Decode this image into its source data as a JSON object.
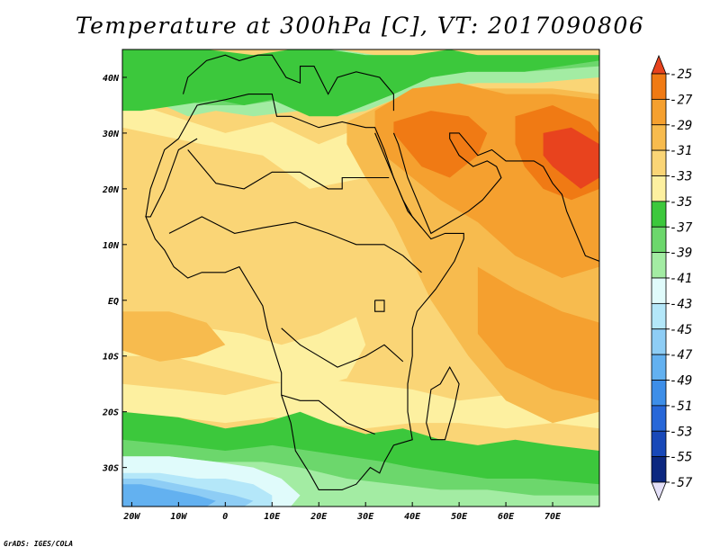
{
  "title": "Temperature at 300hPa [C], VT: 2017090806",
  "credit": "GrADS: IGES/COLA",
  "chart_data": {
    "type": "heatmap",
    "title": "Temperature at 300hPa [C], VT: 2017090806",
    "variable": "Temperature at 300hPa",
    "units": "C",
    "valid_time": "2017090806",
    "xlim": [
      -22,
      80
    ],
    "ylim": [
      -37,
      45
    ],
    "x_ticks": [
      {
        "value": -20,
        "label": "20W"
      },
      {
        "value": -10,
        "label": "10W"
      },
      {
        "value": 0,
        "label": "0"
      },
      {
        "value": 10,
        "label": "10E"
      },
      {
        "value": 20,
        "label": "20E"
      },
      {
        "value": 30,
        "label": "30E"
      },
      {
        "value": 40,
        "label": "40E"
      },
      {
        "value": 50,
        "label": "50E"
      },
      {
        "value": 60,
        "label": "60E"
      },
      {
        "value": 70,
        "label": "70E"
      }
    ],
    "y_ticks": [
      {
        "value": 40,
        "label": "40N"
      },
      {
        "value": 30,
        "label": "30N"
      },
      {
        "value": 20,
        "label": "20N"
      },
      {
        "value": 10,
        "label": "10N"
      },
      {
        "value": 0,
        "label": "EQ"
      },
      {
        "value": -10,
        "label": "10S"
      },
      {
        "value": -20,
        "label": "20S"
      },
      {
        "value": -30,
        "label": "30S"
      }
    ],
    "colorbar": {
      "labels": [
        "-25",
        "-27",
        "-29",
        "-31",
        "-33",
        "-35",
        "-37",
        "-39",
        "-41",
        "-43",
        "-45",
        "-47",
        "-49",
        "-51",
        "-53",
        "-55",
        "-57"
      ],
      "colors": [
        "#e8431e",
        "#f07a14",
        "#f5a02f",
        "#f7bb4e",
        "#fad576",
        "#fdf0a0",
        "#3cc83c",
        "#6cd76c",
        "#a3eca3",
        "#e0fbfb",
        "#b4e7f9",
        "#8ecdf5",
        "#63b1f0",
        "#3d8ee8",
        "#2767d8",
        "#1848b8",
        "#0c2880",
        "#e4e0f8"
      ]
    },
    "regions": [
      {
        "fill": "#fad576",
        "lon": [
          -22,
          80,
          80,
          -22
        ],
        "lat": [
          45,
          45,
          -37,
          -37
        ]
      },
      {
        "fill": "#fdf0a0",
        "lon": [
          -22,
          0,
          10,
          20,
          26,
          32,
          30,
          18,
          8,
          -5,
          -22
        ],
        "lat": [
          36,
          30,
          32,
          28,
          30,
          30,
          22,
          20,
          26,
          28,
          31
        ]
      },
      {
        "fill": "#a3eca3",
        "lon": [
          -22,
          -8,
          0,
          8,
          16,
          24,
          32,
          40,
          52,
          64,
          80,
          80,
          66,
          54,
          44,
          36,
          30,
          24,
          16,
          6,
          -2,
          -8,
          -16,
          -22
        ],
        "lat": [
          45,
          45,
          44,
          44,
          44,
          45,
          44,
          43,
          44,
          42,
          44,
          40,
          39,
          39,
          38,
          36,
          34,
          33,
          34,
          33,
          34,
          33,
          36,
          36
        ]
      },
      {
        "fill": "#6cd76c",
        "lon": [
          -22,
          -8,
          4,
          14,
          22,
          30,
          38,
          48,
          60,
          80,
          80,
          64,
          52,
          42,
          34,
          28,
          20,
          12,
          4,
          -4,
          -10,
          -16,
          -22
        ],
        "lat": [
          45,
          45,
          44,
          44,
          45,
          44,
          44,
          44,
          44,
          44,
          42,
          41,
          41,
          40,
          38,
          35,
          34,
          36,
          35,
          35,
          36,
          35,
          35
        ]
      },
      {
        "fill": "#3cc83c",
        "lon": [
          -22,
          -12,
          -4,
          6,
          14,
          22,
          30,
          40,
          48,
          54,
          62,
          72,
          80,
          80,
          64,
          52,
          44,
          36,
          30,
          24,
          18,
          10,
          4,
          -2,
          -10,
          -18,
          -22
        ],
        "lat": [
          45,
          45,
          45,
          44,
          45,
          45,
          44,
          44,
          45,
          44,
          44,
          44,
          44,
          43,
          41,
          41,
          40,
          37,
          35,
          33,
          33,
          36,
          35,
          36,
          35,
          34,
          34
        ]
      },
      {
        "fill": "#fdf0a0",
        "lon": [
          -22,
          -12,
          -4,
          4,
          12,
          20,
          28,
          30,
          26,
          18,
          8,
          -2,
          -12,
          -22
        ],
        "lat": [
          -5,
          -6,
          -5,
          -6,
          -8,
          -6,
          -3,
          -8,
          -14,
          -16,
          -14,
          -12,
          -10,
          -10
        ]
      },
      {
        "fill": "#fdf0a0",
        "lon": [
          -22,
          -10,
          0,
          10,
          20,
          30,
          40,
          50,
          60,
          70,
          80,
          80,
          70,
          60,
          50,
          40,
          30,
          20,
          10,
          0,
          -10,
          -22
        ],
        "lat": [
          -15,
          -16,
          -17,
          -15,
          -14,
          -15,
          -16,
          -18,
          -17,
          -18,
          -17,
          -23,
          -22,
          -23,
          -22,
          -22,
          -23,
          -22,
          -21,
          -22,
          -21,
          -20
        ]
      },
      {
        "fill": "#3cc83c",
        "lon": [
          -22,
          -10,
          0,
          8,
          16,
          22,
          30,
          38,
          46,
          54,
          62,
          70,
          80,
          80,
          -22
        ],
        "lat": [
          -20,
          -21,
          -23,
          -22,
          -20,
          -22,
          -24,
          -23,
          -25,
          -26,
          -25,
          -26,
          -27,
          -37,
          -37
        ]
      },
      {
        "fill": "#6cd76c",
        "lon": [
          -22,
          -10,
          0,
          10,
          18,
          26,
          34,
          40,
          48,
          56,
          66,
          80,
          80,
          -22
        ],
        "lat": [
          -25,
          -26,
          -27,
          -26,
          -27,
          -28,
          -29,
          -30,
          -31,
          -32,
          -32,
          -33,
          -37,
          -37
        ]
      },
      {
        "fill": "#a3eca3",
        "lon": [
          -22,
          -12,
          -2,
          8,
          16,
          26,
          36,
          46,
          56,
          66,
          80,
          80,
          -22
        ],
        "lat": [
          -28,
          -28,
          -29,
          -29,
          -30,
          -32,
          -33,
          -34,
          -34,
          -35,
          -35,
          -37,
          -37
        ]
      },
      {
        "fill": "#e0fbfb",
        "lon": [
          -22,
          -12,
          -2,
          6,
          12,
          16,
          14,
          6,
          -4,
          -14,
          -22
        ],
        "lat": [
          -28,
          -28,
          -29,
          -30,
          -32,
          -35,
          -37,
          -37,
          -37,
          -37,
          -37
        ]
      },
      {
        "fill": "#b4e7f9",
        "lon": [
          -22,
          -14,
          -6,
          0,
          6,
          10,
          10,
          4,
          -6,
          -16,
          -22
        ],
        "lat": [
          -31,
          -31,
          -32,
          -32,
          -33,
          -35,
          -37,
          -37,
          -37,
          -37,
          -37
        ]
      },
      {
        "fill": "#8ecdf5",
        "lon": [
          -22,
          -16,
          -10,
          -4,
          2,
          6,
          4,
          -4,
          -14,
          -22
        ],
        "lat": [
          -32,
          -32,
          -33,
          -34,
          -35,
          -36,
          -37,
          -37,
          -37,
          -37
        ]
      },
      {
        "fill": "#63b1f0",
        "lon": [
          -22,
          -18,
          -12,
          -6,
          -2,
          -4,
          -12,
          -22
        ],
        "lat": [
          -33,
          -33,
          -34,
          -35,
          -36,
          -37,
          -37,
          -37
        ]
      },
      {
        "fill": "#f7bb4e",
        "lon": [
          26,
          36,
          46,
          58,
          70,
          80,
          80,
          70,
          60,
          52,
          44,
          36,
          30,
          26
        ],
        "lat": [
          32,
          36,
          38,
          38,
          38,
          37,
          -20,
          -22,
          -18,
          -10,
          0,
          14,
          22,
          28
        ]
      },
      {
        "fill": "#f7bb4e",
        "lon": [
          -22,
          -12,
          -4,
          0,
          -6,
          -14,
          -22
        ],
        "lat": [
          -2,
          -2,
          -4,
          -8,
          -10,
          -11,
          -9
        ]
      },
      {
        "fill": "#f5a02f",
        "lon": [
          32,
          40,
          50,
          60,
          70,
          80,
          80,
          72,
          62,
          54,
          46,
          40,
          34,
          32
        ],
        "lat": [
          34,
          38,
          39,
          37,
          37,
          36,
          6,
          4,
          8,
          14,
          18,
          22,
          26,
          30
        ]
      },
      {
        "fill": "#f5a02f",
        "lon": [
          54,
          62,
          72,
          80,
          80,
          70,
          60,
          54
        ],
        "lat": [
          6,
          2,
          -2,
          -4,
          -18,
          -16,
          -12,
          -6
        ]
      },
      {
        "fill": "#f07a14",
        "lon": [
          36,
          44,
          52,
          56,
          54,
          48,
          42,
          38,
          36
        ],
        "lat": [
          32,
          34,
          33,
          30,
          26,
          22,
          24,
          28,
          30
        ]
      },
      {
        "fill": "#f07a14",
        "lon": [
          62,
          70,
          78,
          80,
          80,
          74,
          68,
          64,
          62
        ],
        "lat": [
          33,
          35,
          32,
          30,
          20,
          18,
          20,
          24,
          28
        ]
      },
      {
        "fill": "#e8431e",
        "lon": [
          68,
          74,
          80,
          80,
          76,
          70,
          68
        ],
        "lat": [
          30,
          31,
          28,
          22,
          20,
          24,
          26
        ]
      }
    ]
  }
}
